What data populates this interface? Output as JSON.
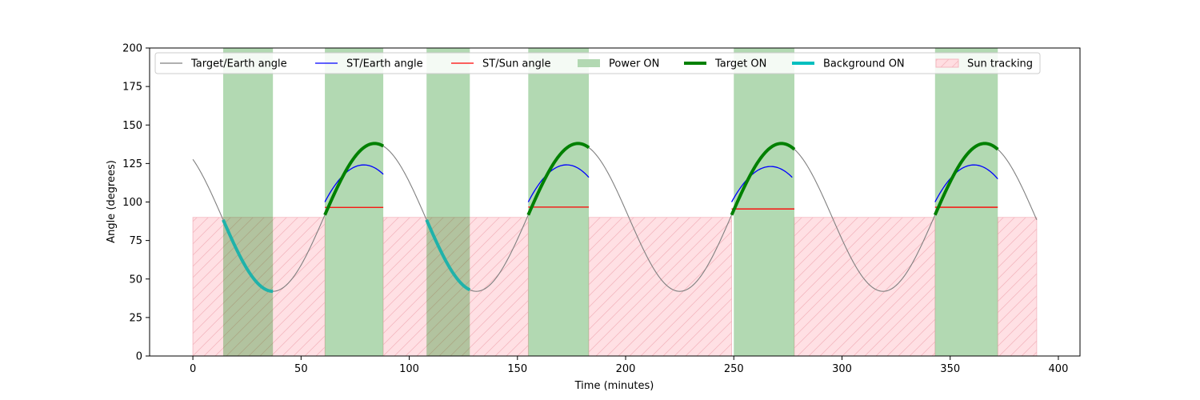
{
  "chart_data": {
    "type": "line",
    "title": "",
    "xlabel": "Time (minutes)",
    "ylabel": "Angle (degrees)",
    "xlim": [
      -20,
      410
    ],
    "ylim": [
      0,
      200
    ],
    "x_ticks": [
      0,
      50,
      100,
      150,
      200,
      250,
      300,
      350,
      400
    ],
    "y_ticks": [
      0,
      25,
      50,
      75,
      100,
      125,
      150,
      175,
      200
    ],
    "grid": false,
    "legend_position": "top",
    "orbit_period_minutes": 94,
    "series": [
      {
        "name": "Target/Earth angle",
        "color": "#808080",
        "sampled_points": [
          [
            0,
            126
          ],
          [
            14,
            90
          ],
          [
            37,
            42
          ],
          [
            61,
            90
          ],
          [
            84,
            138
          ],
          [
            108,
            90
          ],
          [
            131,
            42
          ],
          [
            155,
            90
          ],
          [
            178,
            138
          ],
          [
            202,
            90
          ],
          [
            225,
            42
          ],
          [
            249,
            90
          ],
          [
            272,
            138
          ],
          [
            296,
            90
          ],
          [
            319,
            42
          ],
          [
            343,
            90
          ],
          [
            366,
            138
          ],
          [
            390,
            90
          ]
        ]
      },
      {
        "name": "ST/Earth angle",
        "color": "#0000ff",
        "segments": [
          [
            [
              61,
              100
            ],
            [
              80,
              124
            ],
            [
              88,
              118
            ]
          ],
          [
            [
              155,
              100
            ],
            [
              174,
              124
            ],
            [
              183,
              116
            ]
          ],
          [
            [
              249,
              100
            ],
            [
              268,
              123
            ],
            [
              277,
              116
            ]
          ],
          [
            [
              343,
              100
            ],
            [
              362,
              124
            ],
            [
              372,
              115
            ]
          ]
        ]
      },
      {
        "name": "ST/Sun angle",
        "color": "#ff0000",
        "segments": [
          {
            "x": [
              61,
              88
            ],
            "y": 96.5
          },
          {
            "x": [
              155,
              183
            ],
            "y": 96.7
          },
          {
            "x": [
              249,
              278
            ],
            "y": 95.5
          },
          {
            "x": [
              343,
              372
            ],
            "y": 96.6
          }
        ]
      }
    ],
    "power_on_intervals": [
      [
        14,
        37
      ],
      [
        61,
        88
      ],
      [
        108,
        128
      ],
      [
        155,
        183
      ],
      [
        250,
        278
      ],
      [
        343,
        372
      ]
    ],
    "power_on_color": "#b2d8b2",
    "target_on_intervals": [
      [
        61,
        88
      ],
      [
        155,
        183
      ],
      [
        249,
        278
      ],
      [
        343,
        372
      ]
    ],
    "target_on_color": "#008000",
    "background_on_intervals": [
      [
        14,
        37
      ],
      [
        108,
        128
      ]
    ],
    "background_on_color": "#20b2aa",
    "sun_tracking_intervals": [
      [
        0,
        61
      ],
      [
        88,
        155
      ],
      [
        183,
        249
      ],
      [
        278,
        343
      ],
      [
        372,
        390
      ]
    ],
    "sun_tracking_y": [
      0,
      90
    ],
    "sun_tracking_color": "#ffdde1",
    "legend": [
      {
        "label": "Target/Earth angle",
        "kind": "line",
        "color": "#808080"
      },
      {
        "label": "ST/Earth angle",
        "kind": "line",
        "color": "#0000ff"
      },
      {
        "label": "ST/Sun angle",
        "kind": "line",
        "color": "#ff0000"
      },
      {
        "label": "Power ON",
        "kind": "patch",
        "color": "#b2d8b2"
      },
      {
        "label": "Target ON",
        "kind": "thick-line",
        "color": "#008000"
      },
      {
        "label": "Background ON",
        "kind": "thick-line",
        "color": "#00bfbf"
      },
      {
        "label": "Sun tracking",
        "kind": "hatch",
        "color": "#ffdde1"
      }
    ]
  }
}
